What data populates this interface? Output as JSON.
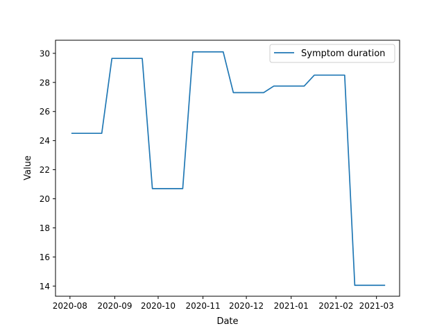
{
  "chart_data": {
    "type": "line",
    "title": "",
    "xlabel": "Date",
    "ylabel": "Value",
    "x_tick_labels": [
      "2020-08",
      "2020-09",
      "2020-10",
      "2020-11",
      "2020-12",
      "2021-01",
      "2021-02",
      "2021-03"
    ],
    "x_ticks": [
      "2020-08-01",
      "2020-09-01",
      "2020-10-01",
      "2020-11-01",
      "2020-12-01",
      "2021-01-01",
      "2021-02-01",
      "2021-03-01"
    ],
    "y_ticks": [
      14,
      16,
      18,
      20,
      22,
      24,
      26,
      28,
      30
    ],
    "xlim": [
      "2020-07-22",
      "2021-03-17"
    ],
    "ylim": [
      13.3,
      30.9
    ],
    "grid": false,
    "legend_position": "upper right",
    "series": [
      {
        "name": "Symptom duration",
        "color": "#1f77b4",
        "x": [
          "2020-08-02",
          "2020-08-23",
          "2020-08-30",
          "2020-09-20",
          "2020-09-27",
          "2020-10-18",
          "2020-10-25",
          "2020-11-15",
          "2020-11-22",
          "2020-12-13",
          "2020-12-20",
          "2021-01-10",
          "2021-01-17",
          "2021-02-07",
          "2021-02-14",
          "2021-03-07"
        ],
        "y": [
          24.5,
          24.5,
          29.65,
          29.65,
          20.7,
          20.7,
          30.1,
          30.1,
          27.3,
          27.3,
          27.75,
          27.75,
          28.5,
          28.5,
          14.05,
          14.05
        ]
      }
    ]
  }
}
